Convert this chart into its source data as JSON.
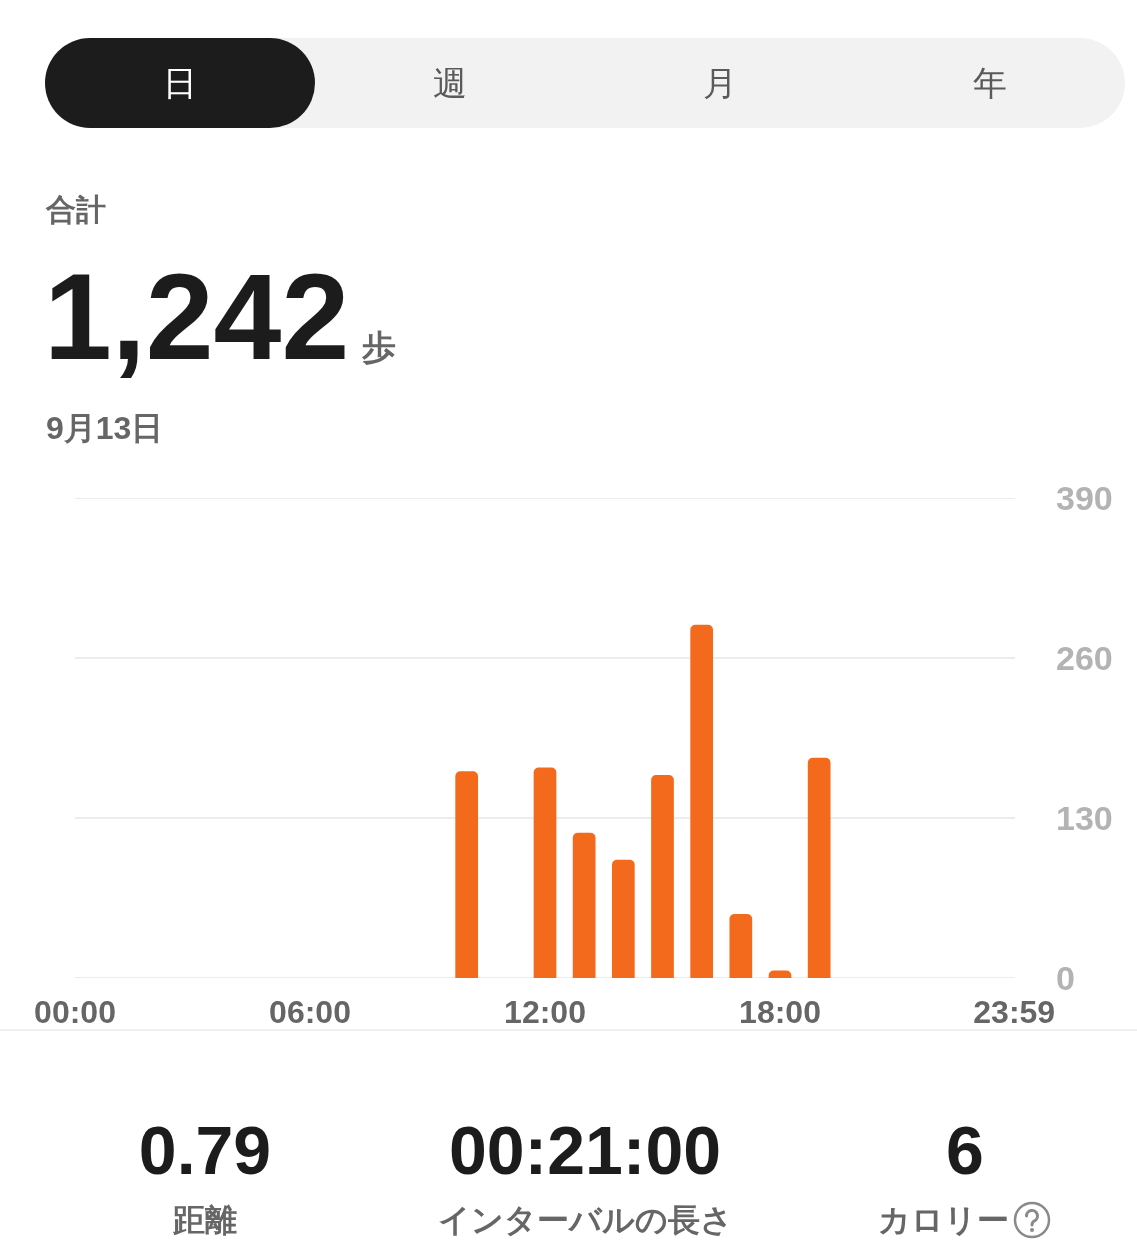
{
  "chart_data": {
    "type": "bar",
    "annotations": [
      "日",
      "週",
      "月",
      "年",
      "合計",
      "1,242",
      "歩",
      "9月13日",
      "0.79",
      "距離",
      "00:21:00",
      "インターバルの長さ",
      "6",
      "カロリー"
    ],
    "x": [
      10,
      12,
      13,
      14,
      15,
      16,
      17,
      18,
      19
    ],
    "values": [
      168,
      171,
      118,
      96,
      165,
      287,
      52,
      6,
      179
    ],
    "color": "#f46a1c",
    "xlim": [
      0,
      24
    ],
    "xticks": [
      {
        "value": 0,
        "label": "00:00"
      },
      {
        "value": 6,
        "label": "06:00"
      },
      {
        "value": 12,
        "label": "12:00"
      },
      {
        "value": 18,
        "label": "18:00"
      },
      {
        "value": 23.98,
        "label": "23:59"
      }
    ],
    "ylim": [
      0,
      390
    ],
    "yticks": [
      0,
      130,
      260,
      390
    ],
    "grid": "y"
  }
}
